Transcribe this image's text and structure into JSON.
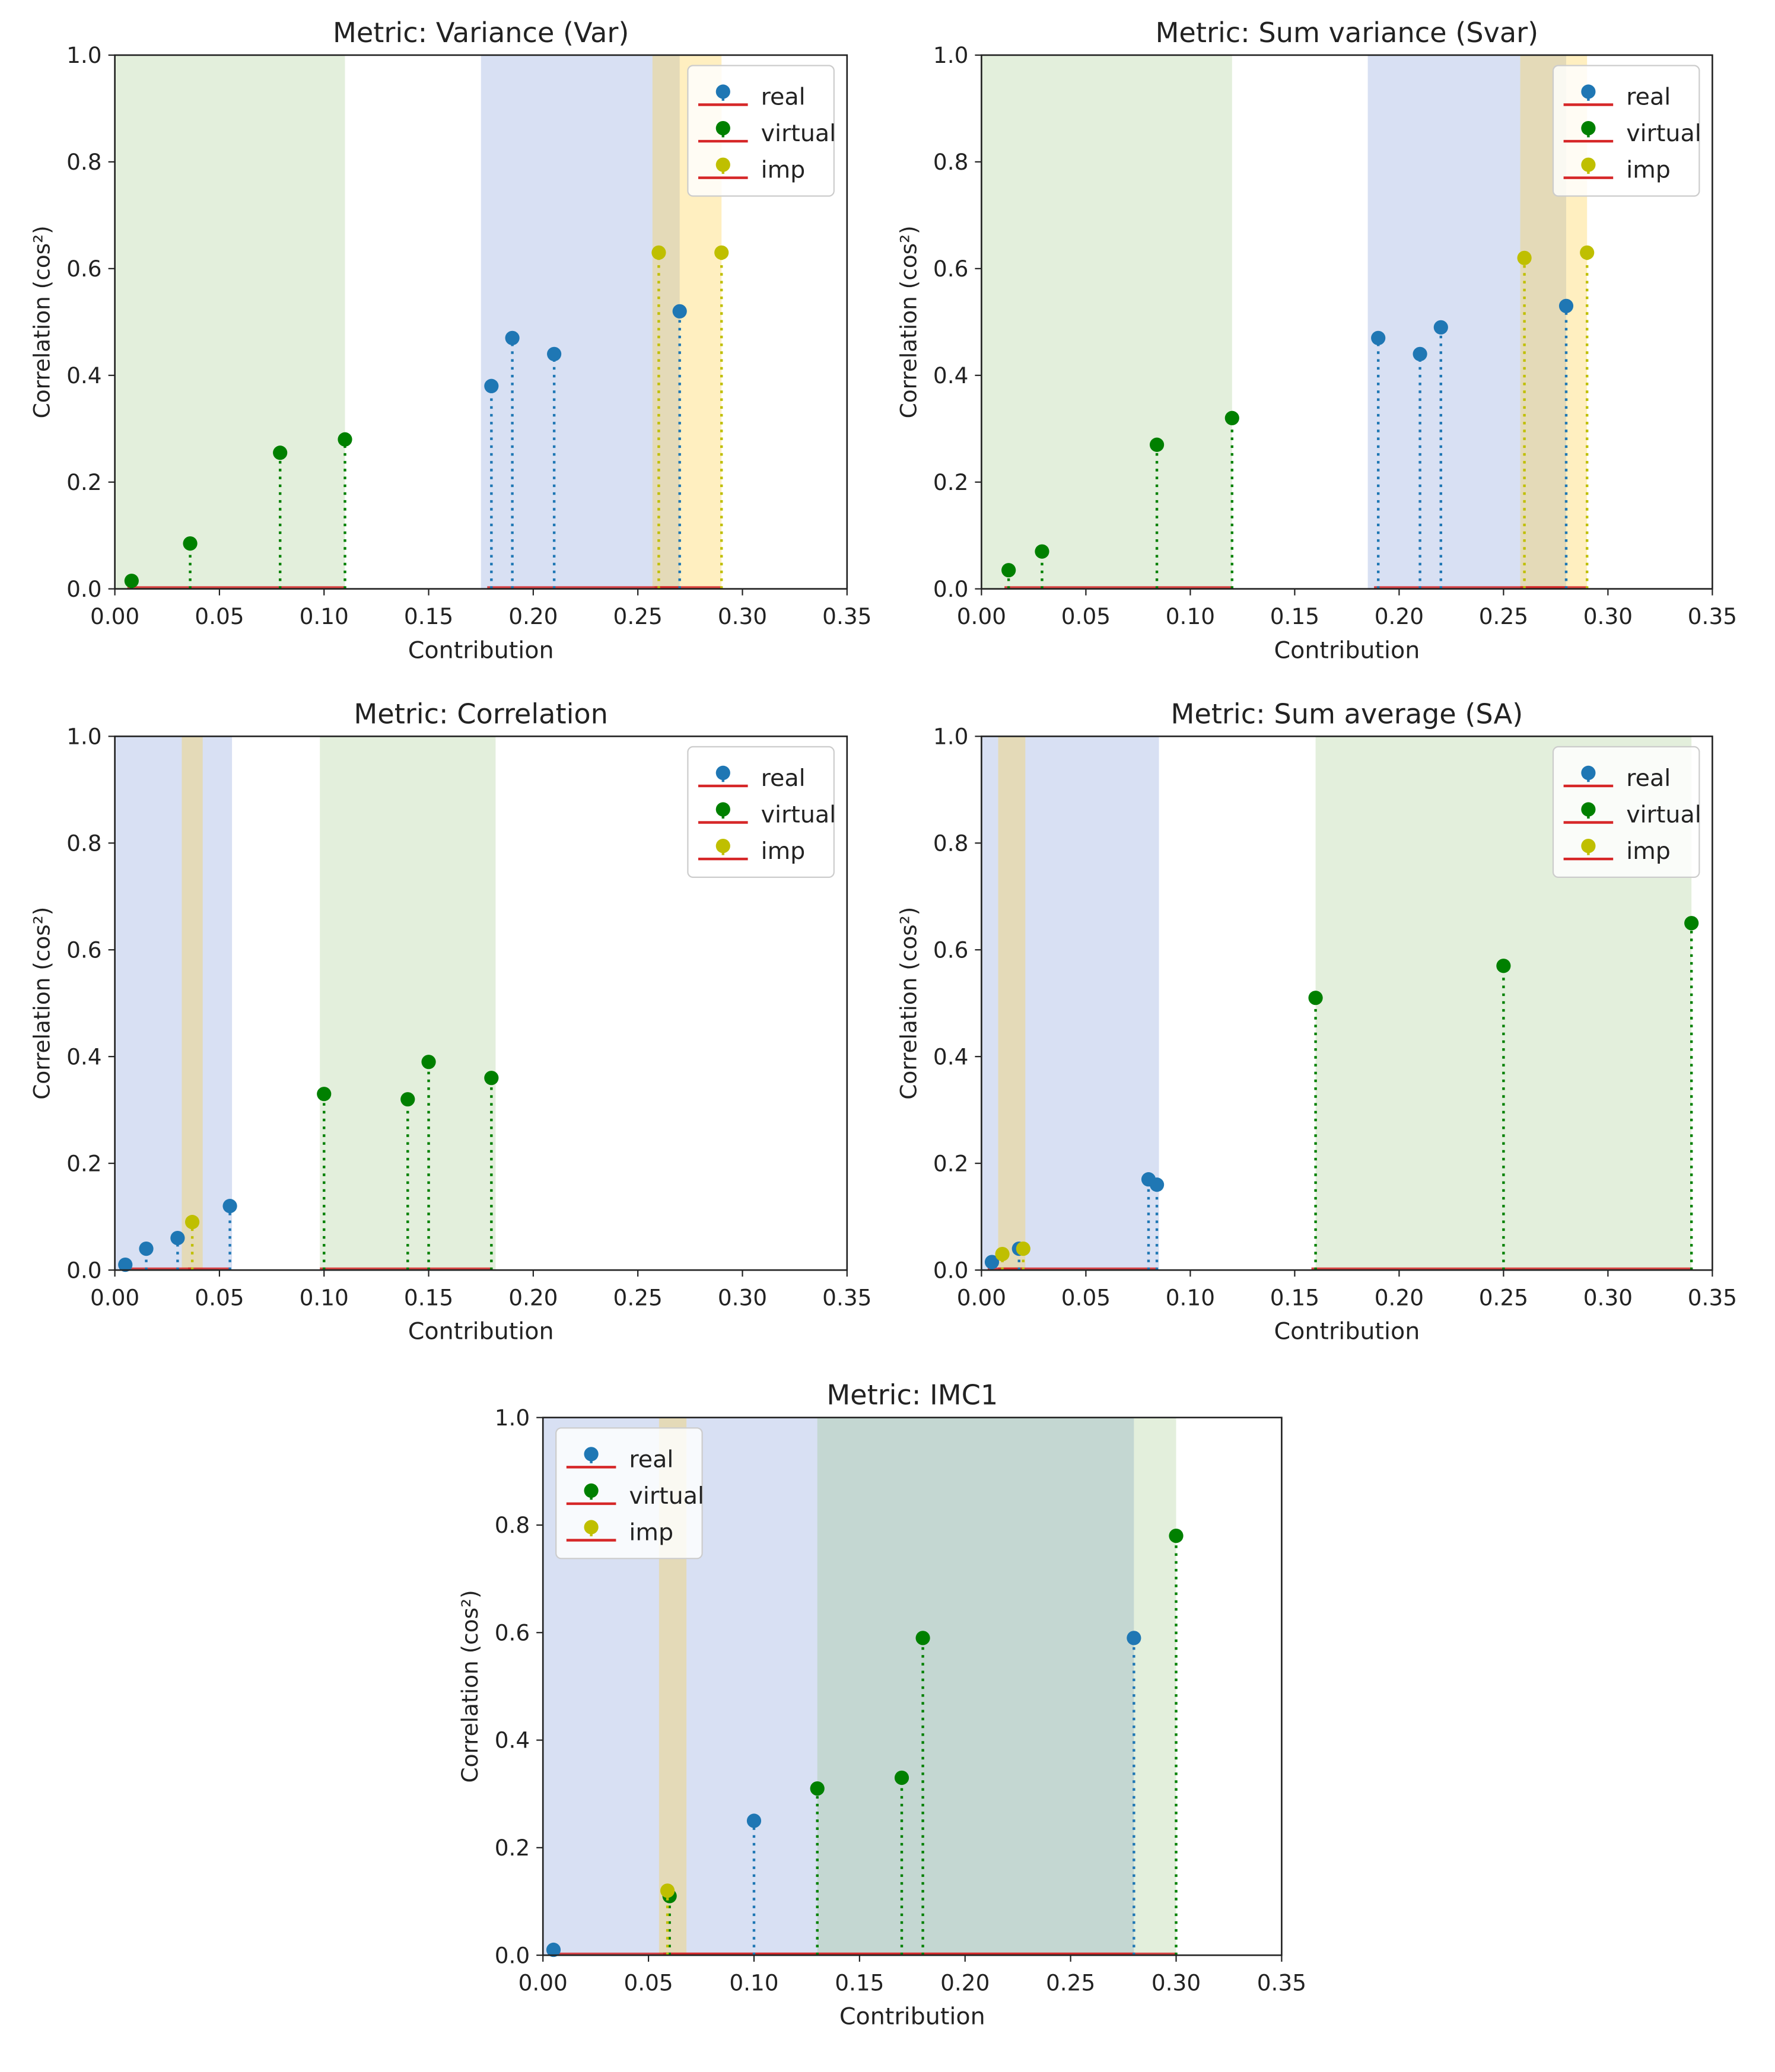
{
  "chart_data": [
    {
      "type": "scatter",
      "title": "Metric: Variance (Var)",
      "xlabel": "Contribution",
      "ylabel": "Correlation (cos²)",
      "xlim": [
        0,
        0.35
      ],
      "ylim": [
        0,
        1.0
      ],
      "xticks": [
        "0.00",
        "0.05",
        "0.10",
        "0.15",
        "0.20",
        "0.25",
        "0.30",
        "0.35"
      ],
      "yticks": [
        "0.0",
        "0.2",
        "0.4",
        "0.6",
        "0.8",
        "1.0"
      ],
      "legend": {
        "position": "top-right",
        "entries": [
          "real",
          "virtual",
          "imp"
        ]
      },
      "spans": [
        {
          "group": "virtual",
          "x0": 0.0,
          "x1": 0.11
        },
        {
          "group": "real",
          "x0": 0.175,
          "x1": 0.27
        },
        {
          "group": "imp",
          "x0": 0.257,
          "x1": 0.29
        }
      ],
      "series": [
        {
          "name": "real",
          "color": "#1f77b4",
          "x": [
            0.18,
            0.19,
            0.21,
            0.27
          ],
          "y": [
            0.38,
            0.47,
            0.44,
            0.52
          ]
        },
        {
          "name": "virtual",
          "color": "#008000",
          "x": [
            0.008,
            0.036,
            0.079,
            0.11
          ],
          "y": [
            0.015,
            0.085,
            0.255,
            0.28
          ]
        },
        {
          "name": "imp",
          "color": "#bfbf00",
          "x": [
            0.26,
            0.29
          ],
          "y": [
            0.63,
            0.63
          ]
        }
      ]
    },
    {
      "type": "scatter",
      "title": "Metric: Sum variance (Svar)",
      "xlabel": "Contribution",
      "ylabel": "Correlation (cos²)",
      "xlim": [
        0,
        0.35
      ],
      "ylim": [
        0,
        1.0
      ],
      "xticks": [
        "0.00",
        "0.05",
        "0.10",
        "0.15",
        "0.20",
        "0.25",
        "0.30",
        "0.35"
      ],
      "yticks": [
        "0.0",
        "0.2",
        "0.4",
        "0.6",
        "0.8",
        "1.0"
      ],
      "legend": {
        "position": "top-right",
        "entries": [
          "real",
          "virtual",
          "imp"
        ]
      },
      "spans": [
        {
          "group": "virtual",
          "x0": 0.0,
          "x1": 0.12
        },
        {
          "group": "real",
          "x0": 0.185,
          "x1": 0.28
        },
        {
          "group": "imp",
          "x0": 0.258,
          "x1": 0.29
        }
      ],
      "series": [
        {
          "name": "real",
          "color": "#1f77b4",
          "x": [
            0.19,
            0.21,
            0.22,
            0.28
          ],
          "y": [
            0.47,
            0.44,
            0.49,
            0.53
          ]
        },
        {
          "name": "virtual",
          "color": "#008000",
          "x": [
            0.013,
            0.029,
            0.084,
            0.12
          ],
          "y": [
            0.035,
            0.07,
            0.27,
            0.32
          ]
        },
        {
          "name": "imp",
          "color": "#bfbf00",
          "x": [
            0.26,
            0.29
          ],
          "y": [
            0.62,
            0.63
          ]
        }
      ]
    },
    {
      "type": "scatter",
      "title": "Metric: Correlation",
      "xlabel": "Contribution",
      "ylabel": "Correlation (cos²)",
      "xlim": [
        0,
        0.35
      ],
      "ylim": [
        0,
        1.0
      ],
      "xticks": [
        "0.00",
        "0.05",
        "0.10",
        "0.15",
        "0.20",
        "0.25",
        "0.30",
        "0.35"
      ],
      "yticks": [
        "0.0",
        "0.2",
        "0.4",
        "0.6",
        "0.8",
        "1.0"
      ],
      "legend": {
        "position": "top-right",
        "entries": [
          "real",
          "virtual",
          "imp"
        ]
      },
      "spans": [
        {
          "group": "real",
          "x0": 0.0,
          "x1": 0.056
        },
        {
          "group": "imp",
          "x0": 0.032,
          "x1": 0.042
        },
        {
          "group": "virtual",
          "x0": 0.098,
          "x1": 0.182
        }
      ],
      "series": [
        {
          "name": "real",
          "color": "#1f77b4",
          "x": [
            0.005,
            0.015,
            0.03,
            0.055
          ],
          "y": [
            0.01,
            0.04,
            0.06,
            0.12
          ]
        },
        {
          "name": "virtual",
          "color": "#008000",
          "x": [
            0.1,
            0.14,
            0.15,
            0.18
          ],
          "y": [
            0.33,
            0.32,
            0.39,
            0.36
          ]
        },
        {
          "name": "imp",
          "color": "#bfbf00",
          "x": [
            0.037
          ],
          "y": [
            0.09
          ]
        }
      ]
    },
    {
      "type": "scatter",
      "title": "Metric: Sum average (SA)",
      "xlabel": "Contribution",
      "ylabel": "Correlation (cos²)",
      "xlim": [
        0,
        0.35
      ],
      "ylim": [
        0,
        1.0
      ],
      "xticks": [
        "0.00",
        "0.05",
        "0.10",
        "0.15",
        "0.20",
        "0.25",
        "0.30",
        "0.35"
      ],
      "yticks": [
        "0.0",
        "0.2",
        "0.4",
        "0.6",
        "0.8",
        "1.0"
      ],
      "legend": {
        "position": "top-right",
        "entries": [
          "real",
          "virtual",
          "imp"
        ]
      },
      "spans": [
        {
          "group": "real",
          "x0": 0.0,
          "x1": 0.085
        },
        {
          "group": "imp",
          "x0": 0.008,
          "x1": 0.021
        },
        {
          "group": "virtual",
          "x0": 0.16,
          "x1": 0.34
        }
      ],
      "series": [
        {
          "name": "real",
          "color": "#1f77b4",
          "x": [
            0.005,
            0.018,
            0.08,
            0.084
          ],
          "y": [
            0.015,
            0.04,
            0.17,
            0.16
          ]
        },
        {
          "name": "virtual",
          "color": "#008000",
          "x": [
            0.16,
            0.25,
            0.34
          ],
          "y": [
            0.51,
            0.57,
            0.65
          ]
        },
        {
          "name": "imp",
          "color": "#bfbf00",
          "x": [
            0.01,
            0.02
          ],
          "y": [
            0.03,
            0.04
          ]
        }
      ]
    },
    {
      "type": "scatter",
      "title": "Metric: IMC1",
      "xlabel": "Contribution",
      "ylabel": "Correlation (cos²)",
      "xlim": [
        0,
        0.35
      ],
      "ylim": [
        0,
        1.0
      ],
      "xticks": [
        "0.00",
        "0.05",
        "0.10",
        "0.15",
        "0.20",
        "0.25",
        "0.30",
        "0.35"
      ],
      "yticks": [
        "0.0",
        "0.2",
        "0.4",
        "0.6",
        "0.8",
        "1.0"
      ],
      "legend": {
        "position": "top-left",
        "entries": [
          "real",
          "virtual",
          "imp"
        ]
      },
      "spans": [
        {
          "group": "real",
          "x0": 0.0,
          "x1": 0.28
        },
        {
          "group": "imp",
          "x0": 0.055,
          "x1": 0.068
        },
        {
          "group": "virtual",
          "x0": 0.13,
          "x1": 0.3
        }
      ],
      "series": [
        {
          "name": "real",
          "color": "#1f77b4",
          "x": [
            0.005,
            0.1,
            0.28
          ],
          "y": [
            0.01,
            0.25,
            0.59
          ]
        },
        {
          "name": "virtual",
          "color": "#008000",
          "x": [
            0.06,
            0.13,
            0.17,
            0.18,
            0.3
          ],
          "y": [
            0.11,
            0.31,
            0.33,
            0.59,
            0.78
          ]
        },
        {
          "name": "imp",
          "color": "#bfbf00",
          "x": [
            0.059
          ],
          "y": [
            0.12
          ]
        }
      ]
    }
  ]
}
